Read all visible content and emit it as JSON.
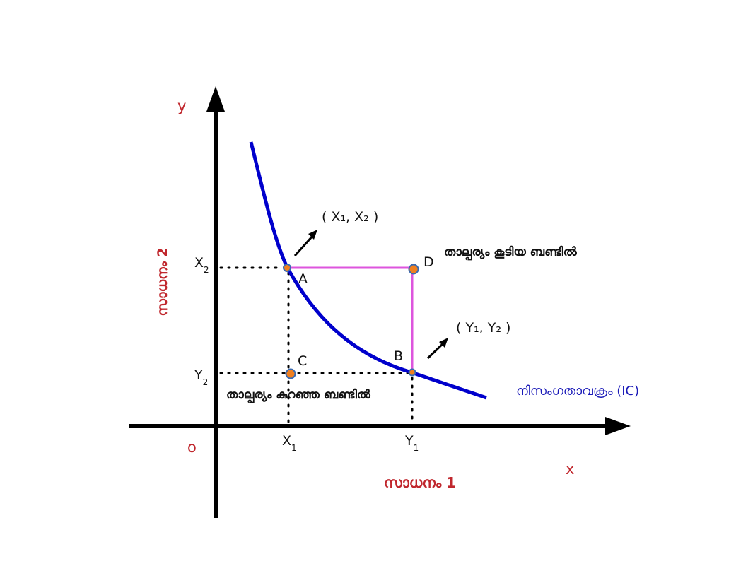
{
  "axes": {
    "y_letter": "y",
    "x_letter": "x",
    "origin": "o",
    "y_label": "സാധനം 2",
    "x_label": "സാധനം 1"
  },
  "ticks": {
    "x2": "X",
    "x2_sub": "2",
    "y2": "Y",
    "y2_sub": "2",
    "x1": "X",
    "x1_sub": "1",
    "y1": "Y",
    "y1_sub": "1"
  },
  "points": {
    "a": "A",
    "b": "B",
    "c": "C",
    "d": "D"
  },
  "annotations": {
    "coord_a": "( X₁, X₂ )",
    "coord_b": "( Y₁, Y₂ )",
    "higher_bundle": "താല്പര്യം കൂടിയ ബണ്ടിൽ",
    "lower_bundle": "താല്പര്യം കുറഞ്ഞ ബണ്ടിൽ",
    "curve_label": "നിസംഗതാവക്രം (IC)"
  },
  "colors": {
    "axis": "#000000",
    "curve": "#0000cc",
    "rect": "#dd55dd",
    "point_fill": "#f08020",
    "point_stroke": "#3a6ab0",
    "label_red": "#c0272d",
    "label_blue": "#1a1ab8"
  }
}
